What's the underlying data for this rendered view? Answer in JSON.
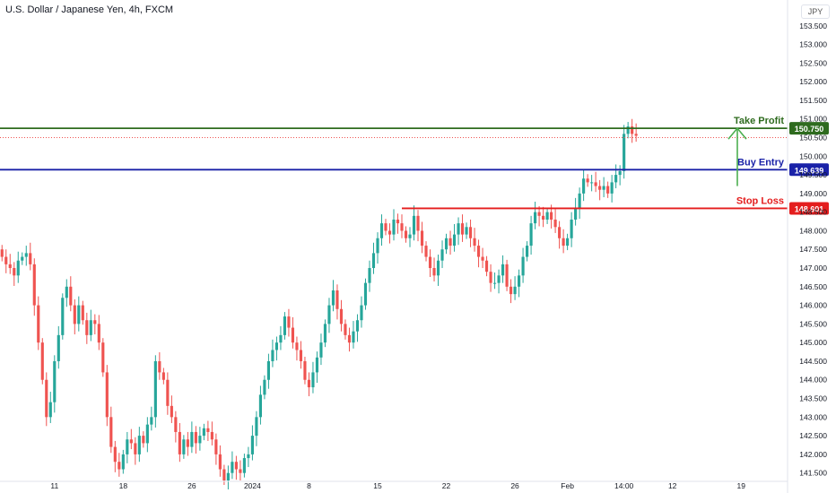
{
  "header": {
    "title": "U.S. Dollar / Japanese Yen, 4h, FXCM",
    "currency": "JPY"
  },
  "colors": {
    "up": "#26a69a",
    "down": "#ef5350",
    "take_profit": "#2e6b1e",
    "buy_entry": "#1a22a8",
    "stop_loss": "#e41d1d",
    "arrow": "#4caf50",
    "axis_text": "#131722",
    "grid": "#ffffff"
  },
  "chart_data": {
    "type": "candlestick",
    "title": "U.S. Dollar / Japanese Yen, 4h, FXCM",
    "y_axis": {
      "min": 141.3,
      "max": 154.0,
      "ticks": [
        "141.500",
        "142.000",
        "142.500",
        "143.000",
        "143.500",
        "144.000",
        "144.500",
        "145.000",
        "145.500",
        "146.000",
        "146.500",
        "147.000",
        "147.500",
        "148.000",
        "148.500",
        "149.000",
        "149.500",
        "150.000",
        "150.500",
        "151.000",
        "151.500",
        "152.000",
        "152.500",
        "153.000",
        "153.500"
      ]
    },
    "x_axis": {
      "ticks": [
        {
          "label": "11",
          "index": 13
        },
        {
          "label": "18",
          "index": 30
        },
        {
          "label": "26",
          "index": 47
        },
        {
          "label": "2024",
          "index": 62
        },
        {
          "label": "8",
          "index": 76
        },
        {
          "label": "15",
          "index": 93
        },
        {
          "label": "22",
          "index": 110
        },
        {
          "label": "26",
          "index": 127
        },
        {
          "label": "Feb",
          "index": 140
        },
        {
          "label": "14:00",
          "index": 154
        },
        {
          "label": "12",
          "index": 166
        },
        {
          "label": "19",
          "index": 183
        }
      ],
      "total_slots": 195
    },
    "closes": [
      147.3,
      147.1,
      147.0,
      146.8,
      147.2,
      147.3,
      147.4,
      147.1,
      146.0,
      145.0,
      144.0,
      143.0,
      143.4,
      144.5,
      145.2,
      146.2,
      146.5,
      146.0,
      145.5,
      146.0,
      145.6,
      145.2,
      145.6,
      145.5,
      145.0,
      144.2,
      143.0,
      142.2,
      141.8,
      141.6,
      142.0,
      142.4,
      142.3,
      142.0,
      142.5,
      142.3,
      142.8,
      143.0,
      144.5,
      144.2,
      144.0,
      143.3,
      143.0,
      142.6,
      142.0,
      142.4,
      142.2,
      142.6,
      142.3,
      142.5,
      142.7,
      142.6,
      142.4,
      142.0,
      141.6,
      141.3,
      141.5,
      141.8,
      141.6,
      141.5,
      141.9,
      142.0,
      142.5,
      143.0,
      143.6,
      144.0,
      144.5,
      144.8,
      145.0,
      145.2,
      145.7,
      145.4,
      145.0,
      144.8,
      144.5,
      144.0,
      143.8,
      144.2,
      144.6,
      145.0,
      145.5,
      146.0,
      146.4,
      145.9,
      145.5,
      145.2,
      145.0,
      145.3,
      145.6,
      146.0,
      146.6,
      147.0,
      147.4,
      147.8,
      148.2,
      148.0,
      147.9,
      148.3,
      148.2,
      148.0,
      147.8,
      147.9,
      148.4,
      148.0,
      147.6,
      147.3,
      147.0,
      146.8,
      147.2,
      147.5,
      147.8,
      147.6,
      147.9,
      148.2,
      147.9,
      148.1,
      147.8,
      147.6,
      147.3,
      147.2,
      146.9,
      146.6,
      146.6,
      146.8,
      147.1,
      146.5,
      146.3,
      146.5,
      146.8,
      147.3,
      147.6,
      148.2,
      148.5,
      148.4,
      148.3,
      148.5,
      148.3,
      148.1,
      147.8,
      147.6,
      147.8,
      148.3,
      148.6,
      149.0,
      149.4,
      149.3,
      149.3,
      149.2,
      149.1,
      149.2,
      149.0,
      149.3,
      149.5,
      149.6,
      150.6,
      150.8,
      150.6,
      150.55
    ],
    "levels": [
      {
        "name": "Take Profit",
        "value": 150.75,
        "label": "150.750"
      },
      {
        "name": "Buy Entry",
        "value": 149.639,
        "label": "149.639"
      },
      {
        "name": "Stop Loss",
        "value": 148.601,
        "label": "148.601"
      }
    ],
    "current_price": {
      "value": 150.5,
      "label": "150.500"
    }
  }
}
